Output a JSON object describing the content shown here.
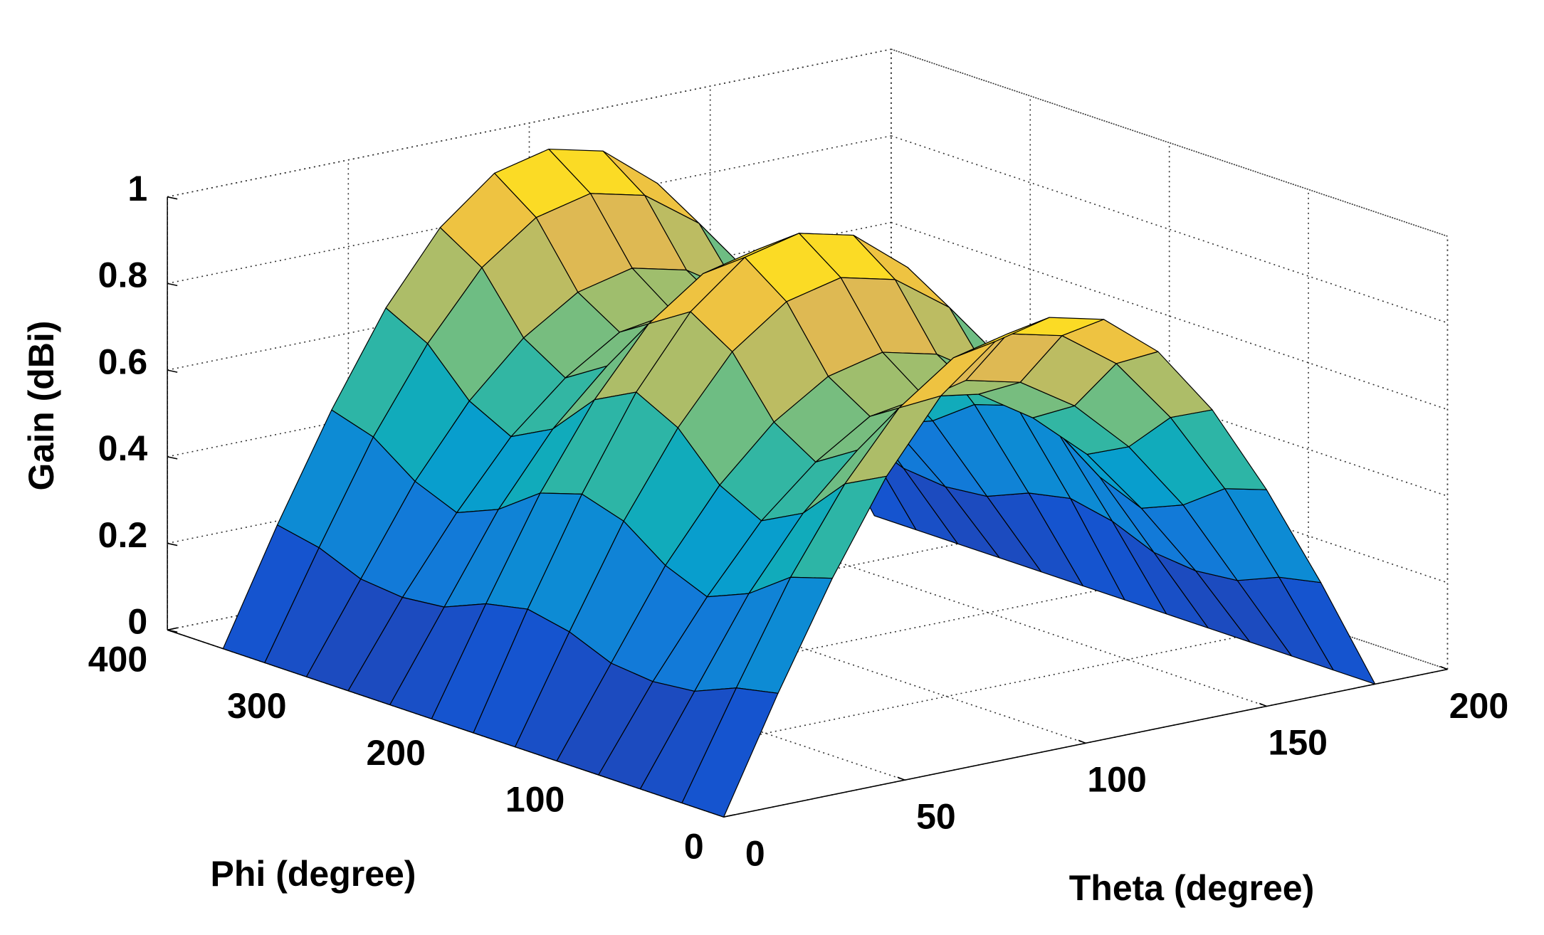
{
  "chart_data": {
    "type": "surface",
    "xlabel": "Theta (degree)",
    "ylabel": "Phi (degree)",
    "zlabel": "Gain (dBi)",
    "x": [
      0,
      15,
      30,
      45,
      60,
      75,
      90,
      105,
      120,
      135,
      150,
      165,
      180
    ],
    "y": [
      0,
      30,
      60,
      90,
      120,
      150,
      180,
      210,
      240,
      270,
      300,
      330,
      360
    ],
    "z": [
      [
        0,
        0.26,
        0.5,
        0.71,
        0.87,
        0.97,
        1,
        0.97,
        0.87,
        0.71,
        0.5,
        0.26,
        0
      ],
      [
        0,
        0.24,
        0.47,
        0.66,
        0.81,
        0.9,
        0.93,
        0.9,
        0.81,
        0.66,
        0.47,
        0.24,
        0
      ],
      [
        0,
        0.2,
        0.4,
        0.56,
        0.68,
        0.76,
        0.79,
        0.76,
        0.68,
        0.56,
        0.4,
        0.2,
        0
      ],
      [
        0,
        0.19,
        0.36,
        0.51,
        0.62,
        0.7,
        0.72,
        0.7,
        0.62,
        0.51,
        0.36,
        0.19,
        0
      ],
      [
        0,
        0.2,
        0.4,
        0.56,
        0.68,
        0.76,
        0.79,
        0.76,
        0.68,
        0.56,
        0.4,
        0.2,
        0
      ],
      [
        0,
        0.24,
        0.47,
        0.66,
        0.81,
        0.9,
        0.93,
        0.9,
        0.81,
        0.66,
        0.47,
        0.24,
        0
      ],
      [
        0,
        0.26,
        0.5,
        0.71,
        0.87,
        0.97,
        1,
        0.97,
        0.87,
        0.71,
        0.5,
        0.26,
        0
      ],
      [
        0,
        0.24,
        0.47,
        0.66,
        0.81,
        0.9,
        0.93,
        0.9,
        0.81,
        0.66,
        0.47,
        0.24,
        0
      ],
      [
        0,
        0.2,
        0.4,
        0.56,
        0.68,
        0.76,
        0.79,
        0.76,
        0.68,
        0.56,
        0.4,
        0.2,
        0
      ],
      [
        0,
        0.19,
        0.36,
        0.51,
        0.62,
        0.7,
        0.72,
        0.7,
        0.62,
        0.51,
        0.36,
        0.19,
        0
      ],
      [
        0,
        0.2,
        0.4,
        0.56,
        0.68,
        0.76,
        0.79,
        0.76,
        0.68,
        0.56,
        0.4,
        0.2,
        0
      ],
      [
        0,
        0.24,
        0.47,
        0.66,
        0.81,
        0.9,
        0.93,
        0.9,
        0.81,
        0.66,
        0.47,
        0.24,
        0
      ],
      [
        0,
        0.26,
        0.5,
        0.71,
        0.87,
        0.97,
        1,
        0.97,
        0.87,
        0.71,
        0.5,
        0.26,
        0
      ]
    ],
    "xlim": [
      0,
      200
    ],
    "xticks": [
      0,
      50,
      100,
      150,
      200
    ],
    "ylim": [
      0,
      400
    ],
    "yticks": [
      0,
      100,
      200,
      300,
      400
    ],
    "zlim": [
      0,
      1
    ],
    "zticks": [
      0,
      0.2,
      0.4,
      0.6,
      0.8,
      1
    ],
    "grid": true,
    "colormap": "parula"
  }
}
